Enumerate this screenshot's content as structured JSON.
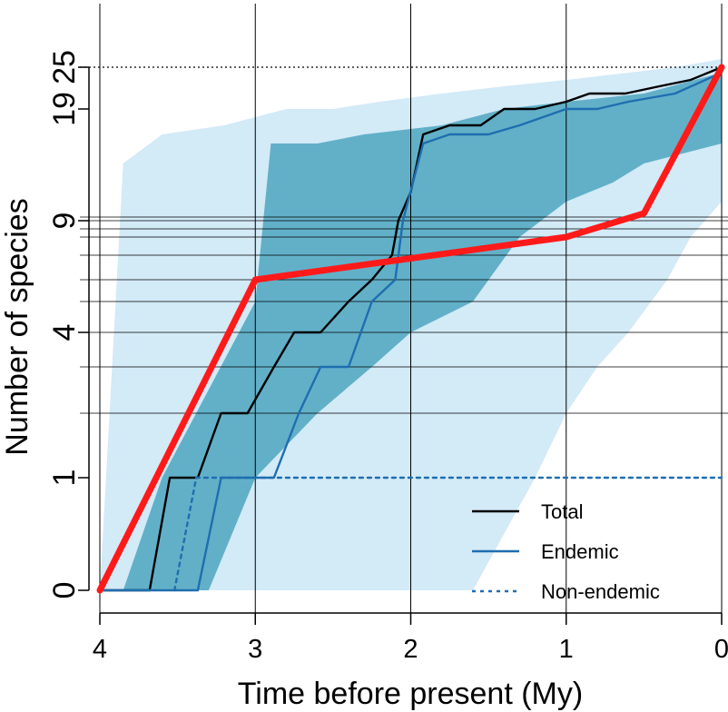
{
  "chart_data": {
    "type": "line",
    "xlabel": "Time before present (My)",
    "ylabel": "Number of species",
    "xlim": [
      4,
      0
    ],
    "x_axis_reversed": true,
    "y_scale": "transformed (compressed upper values)",
    "x_ticks": [
      4,
      3,
      2,
      1,
      0
    ],
    "y_ticks": [
      0,
      1,
      4,
      9,
      19,
      25
    ],
    "y_tick_labels": [
      "0",
      "1",
      "4",
      "9",
      "19",
      "25"
    ],
    "reference_line": {
      "y": 25,
      "style": "dotted"
    },
    "grid": "vertical lines at x ticks; horizontal lines near y ticks",
    "legend_position": "bottom-right",
    "legend": [
      {
        "label": "Total",
        "color": "#000000",
        "style": "solid"
      },
      {
        "label": "Endemic",
        "color": "#1f6eb0",
        "style": "solid"
      },
      {
        "label": "Non-endemic",
        "color": "#1f6eb0",
        "style": "dotted"
      }
    ],
    "series": [
      {
        "name": "Total",
        "color": "#000000",
        "points": [
          [
            4,
            0
          ],
          [
            3.68,
            0
          ],
          [
            3.55,
            1
          ],
          [
            3.37,
            1
          ],
          [
            3.22,
            2
          ],
          [
            3.05,
            2
          ],
          [
            2.88,
            3
          ],
          [
            2.75,
            4
          ],
          [
            2.58,
            4
          ],
          [
            2.4,
            5
          ],
          [
            2.25,
            6
          ],
          [
            2.12,
            7
          ],
          [
            2.08,
            9
          ],
          [
            2.0,
            12
          ],
          [
            1.92,
            17
          ],
          [
            1.75,
            18
          ],
          [
            1.55,
            18
          ],
          [
            1.4,
            19
          ],
          [
            1.2,
            19
          ],
          [
            1.0,
            20
          ],
          [
            0.85,
            21
          ],
          [
            0.62,
            21
          ],
          [
            0.4,
            22
          ],
          [
            0.2,
            23
          ],
          [
            0.0,
            25
          ]
        ]
      },
      {
        "name": "Endemic",
        "color": "#1f6eb0",
        "points": [
          [
            4,
            0
          ],
          [
            3.37,
            0
          ],
          [
            3.22,
            1
          ],
          [
            2.88,
            1
          ],
          [
            2.72,
            2
          ],
          [
            2.58,
            3
          ],
          [
            2.4,
            3
          ],
          [
            2.25,
            5
          ],
          [
            2.1,
            6
          ],
          [
            2.05,
            9
          ],
          [
            1.92,
            16
          ],
          [
            1.75,
            17
          ],
          [
            1.5,
            17
          ],
          [
            1.3,
            18
          ],
          [
            1.0,
            19
          ],
          [
            0.8,
            19
          ],
          [
            0.6,
            20
          ],
          [
            0.3,
            21
          ],
          [
            0.0,
            24
          ]
        ]
      },
      {
        "name": "Non-endemic",
        "color": "#1f6eb0",
        "style": "dotted",
        "points": [
          [
            3.52,
            0
          ],
          [
            3.38,
            1
          ],
          [
            0.0,
            1
          ]
        ]
      },
      {
        "name": "",
        "color": "#ff1a1a",
        "points": [
          [
            4,
            0
          ],
          [
            3,
            6
          ],
          [
            1,
            8
          ],
          [
            0.5,
            10
          ],
          [
            0,
            25
          ]
        ]
      }
    ],
    "bands": [
      {
        "color": "#d3eaf7",
        "upper": [
          [
            3.85,
            15
          ],
          [
            3.6,
            17
          ],
          [
            3.2,
            18
          ],
          [
            2.8,
            19
          ],
          [
            2.5,
            19
          ],
          [
            2.2,
            20
          ],
          [
            1.8,
            21
          ],
          [
            1.4,
            22
          ],
          [
            1.0,
            23
          ],
          [
            0.6,
            24
          ],
          [
            0.3,
            25
          ],
          [
            0.0,
            26
          ]
        ],
        "lower": [
          [
            0.0,
            11
          ],
          [
            0.2,
            8
          ],
          [
            0.35,
            6
          ],
          [
            0.6,
            4
          ],
          [
            0.8,
            3
          ],
          [
            1.0,
            2
          ],
          [
            1.2,
            1
          ],
          [
            1.6,
            0
          ],
          [
            2.4,
            0
          ],
          [
            3.55,
            0
          ],
          [
            3.9,
            0
          ],
          [
            4,
            0
          ]
        ]
      },
      {
        "color": "#62b0c8",
        "upper": [
          [
            3.85,
            0
          ],
          [
            3.6,
            1
          ],
          [
            3.0,
            5
          ],
          [
            2.9,
            16
          ],
          [
            2.6,
            16
          ],
          [
            2.3,
            17
          ],
          [
            1.8,
            18
          ],
          [
            1.4,
            19
          ],
          [
            1.0,
            20
          ],
          [
            0.5,
            21
          ],
          [
            0.0,
            24
          ]
        ],
        "lower": [
          [
            0.0,
            16
          ],
          [
            0.5,
            15
          ],
          [
            0.7,
            13
          ],
          [
            1.0,
            11
          ],
          [
            1.3,
            8
          ],
          [
            1.6,
            5
          ],
          [
            2.0,
            4
          ],
          [
            2.25,
            3
          ],
          [
            2.6,
            2
          ],
          [
            3.0,
            1
          ],
          [
            3.3,
            0
          ],
          [
            3.9,
            0
          ],
          [
            4,
            0
          ]
        ]
      }
    ]
  }
}
